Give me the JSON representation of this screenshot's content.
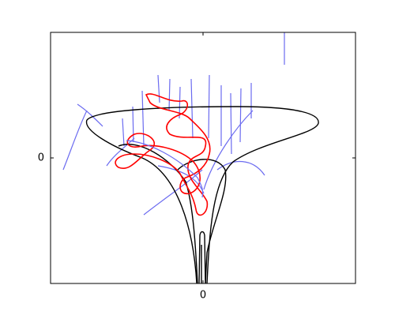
{
  "chart_data": {
    "type": "line",
    "xlim": [
      -1,
      1
    ],
    "ylim": [
      -1,
      1
    ],
    "xticks": [
      0
    ],
    "yticks": [
      0
    ]
  }
}
